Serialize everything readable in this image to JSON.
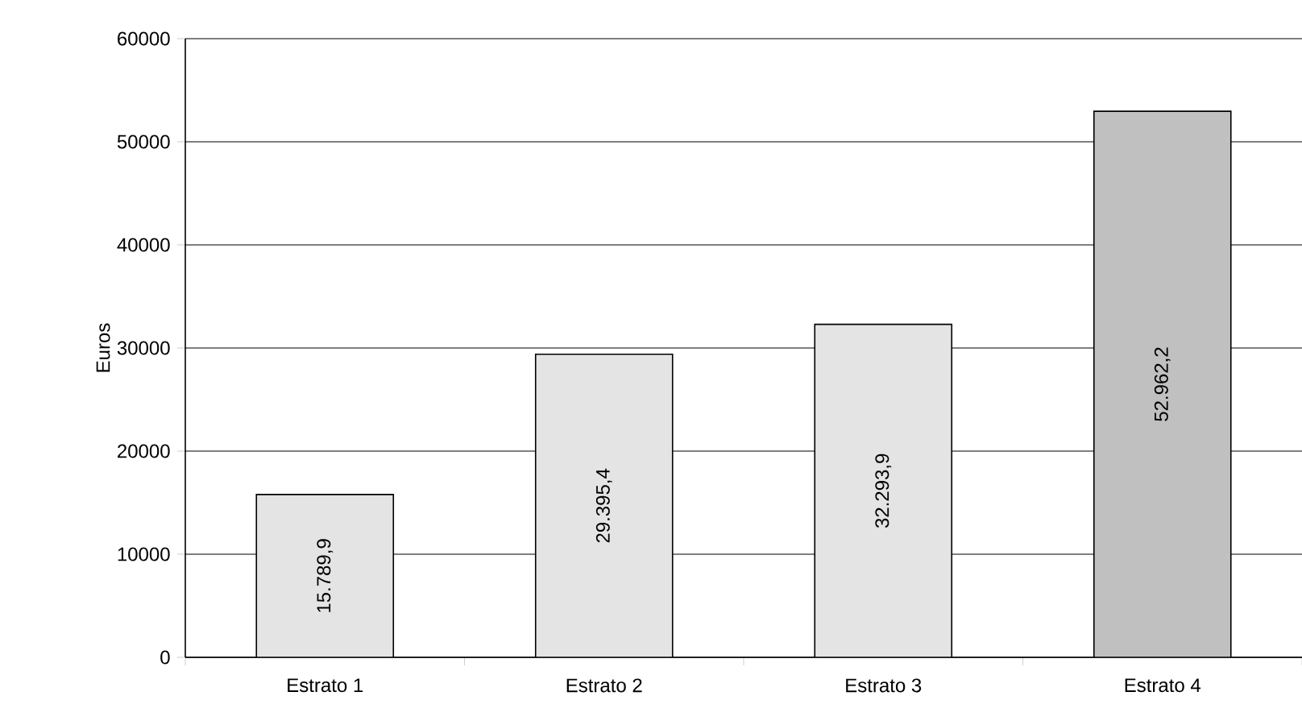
{
  "chart_data": {
    "type": "bar",
    "ylabel": "Euros",
    "categories": [
      "Estrato 1",
      "Estrato 2",
      "Estrato 3",
      "Estrato 4"
    ],
    "values": [
      15789.9,
      29395.4,
      32293.9,
      52962.2
    ],
    "value_labels": [
      "15.789,9",
      "29.395,4",
      "32.293,9",
      "52.962,2"
    ],
    "colors": [
      "#e4e4e4",
      "#e4e4e4",
      "#e4e4e4",
      "#c0c0c0"
    ],
    "ylim": [
      0,
      60000
    ],
    "yticks": [
      0,
      10000,
      20000,
      30000,
      40000,
      50000,
      60000
    ],
    "grid": "y"
  }
}
